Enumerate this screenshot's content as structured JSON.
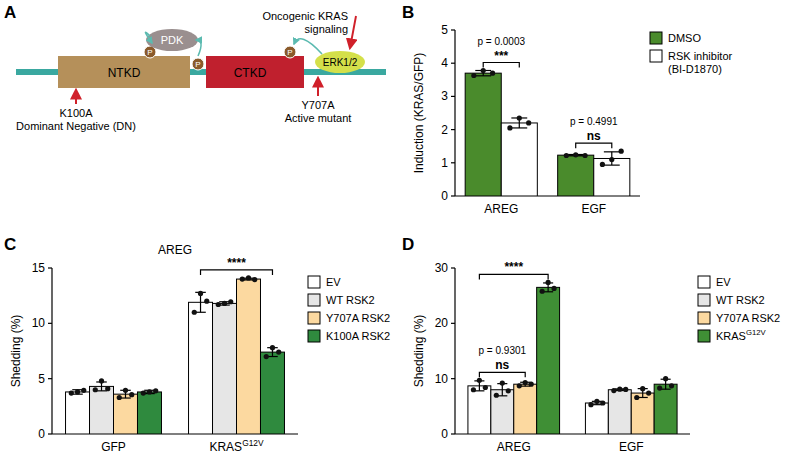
{
  "diagram": {
    "panel": "A",
    "domains": [
      {
        "label": "NTKD"
      },
      {
        "label": "CTKD"
      }
    ],
    "kinases": [
      {
        "label": "PDK"
      },
      {
        "label": "ERK1/2"
      }
    ],
    "phospho_label": "P",
    "mutations": [
      {
        "label": "K100A",
        "effect": "Dominant Negative (DN)"
      },
      {
        "label": "Y707A",
        "effect": "Active mutant"
      }
    ],
    "input": [
      "Oncogenic KRAS",
      "signaling"
    ]
  },
  "chart_data": [
    {
      "panel": "B",
      "type": "bar",
      "ylabel": "Induction (KRAS/GFP)",
      "categories": [
        "AREG",
        "EGF"
      ],
      "ylim": [
        0,
        5
      ],
      "yticks": [
        0,
        1,
        2,
        3,
        4,
        5
      ],
      "legend": "upper right",
      "series": [
        {
          "name": "DMSO",
          "color": "#4a8b2c",
          "values": [
            3.7,
            1.23
          ],
          "errors": [
            0.08,
            0.02
          ],
          "points": [
            [
              3.63,
              3.78,
              3.7
            ],
            [
              1.22,
              1.24,
              1.22
            ]
          ]
        },
        {
          "name": "RSK inhibitor (BI-D1870)",
          "color": "#ffffff",
          "values": [
            2.2,
            1.13
          ],
          "errors": [
            0.15,
            0.2
          ],
          "points": [
            [
              2.05,
              2.35,
              2.2
            ],
            [
              0.95,
              1.1,
              1.35
            ]
          ]
        }
      ],
      "annotations": [
        {
          "category": 0,
          "series": [
            0,
            1
          ],
          "text": "***",
          "note": "p = 0.0003"
        },
        {
          "category": 1,
          "series": [
            0,
            1
          ],
          "text": "ns",
          "note": "p = 0.4991"
        }
      ]
    },
    {
      "panel": "C",
      "type": "bar",
      "title": "AREG",
      "ylabel": "Shedding (%)",
      "categories": [
        "GFP",
        "KRASG12V"
      ],
      "ylim": [
        0,
        15
      ],
      "yticks": [
        0,
        5,
        10,
        15
      ],
      "legend": "right",
      "series": [
        {
          "name": "EV",
          "color": "#ffffff",
          "values": [
            3.8,
            11.9
          ],
          "errors": [
            0.2,
            0.9
          ],
          "points": [
            [
              3.7,
              3.8,
              3.95
            ],
            [
              11.0,
              12.7,
              12.0
            ]
          ]
        },
        {
          "name": "WT RSK2",
          "color": "#e6e6e6",
          "values": [
            4.3,
            11.8
          ],
          "errors": [
            0.4,
            0.15
          ],
          "points": [
            [
              4.0,
              4.8,
              4.1
            ],
            [
              11.7,
              11.8,
              11.95
            ]
          ]
        },
        {
          "name": "Y707A RSK2",
          "color": "#fcd9a0",
          "values": [
            3.6,
            14.0
          ],
          "errors": [
            0.35,
            0.08
          ],
          "points": [
            [
              3.3,
              3.95,
              3.55
            ],
            [
              14.0,
              14.1,
              13.95
            ]
          ]
        },
        {
          "name": "K100A RSK2",
          "color": "#2f8a3e",
          "values": [
            3.8,
            7.4
          ],
          "errors": [
            0.15,
            0.4
          ],
          "points": [
            [
              3.7,
              3.8,
              3.9
            ],
            [
              7.0,
              7.8,
              7.4
            ]
          ]
        }
      ],
      "annotations": [
        {
          "category": 1,
          "series": [
            0,
            3
          ],
          "text": "****"
        }
      ]
    },
    {
      "panel": "D",
      "type": "bar",
      "ylabel": "Shedding (%)",
      "categories": [
        "AREG",
        "EGF"
      ],
      "ylim": [
        0,
        30
      ],
      "yticks": [
        0,
        10,
        20,
        30
      ],
      "legend": "right",
      "series": [
        {
          "name": "EV",
          "color": "#ffffff",
          "values": [
            8.7,
            5.6
          ],
          "errors": [
            0.9,
            0.3
          ],
          "points": [
            [
              8.0,
              9.7,
              8.4
            ],
            [
              5.3,
              5.9,
              5.6
            ]
          ]
        },
        {
          "name": "WT RSK2",
          "color": "#e6e6e6",
          "values": [
            8.0,
            8.0
          ],
          "errors": [
            1.1,
            0.15
          ],
          "points": [
            [
              7.0,
              9.2,
              7.8
            ],
            [
              7.85,
              8.1,
              8.05
            ]
          ]
        },
        {
          "name": "Y707A RSK2",
          "color": "#fcd9a0",
          "values": [
            9.0,
            7.4
          ],
          "errors": [
            0.35,
            0.8
          ],
          "points": [
            [
              8.7,
              9.3,
              9.0
            ],
            [
              6.6,
              8.2,
              7.4
            ]
          ]
        },
        {
          "name": "KRASG12V",
          "color": "#3f8f35",
          "values": [
            26.5,
            9.0
          ],
          "errors": [
            0.8,
            0.9
          ],
          "points": [
            [
              25.8,
              27.4,
              26.3
            ],
            [
              8.3,
              10.0,
              8.7
            ]
          ]
        }
      ],
      "annotations": [
        {
          "category": 0,
          "series": [
            0,
            2
          ],
          "text": "ns",
          "note": "p = 0.9301"
        },
        {
          "category": 0,
          "series": [
            0,
            3
          ],
          "text": "****"
        }
      ]
    }
  ]
}
